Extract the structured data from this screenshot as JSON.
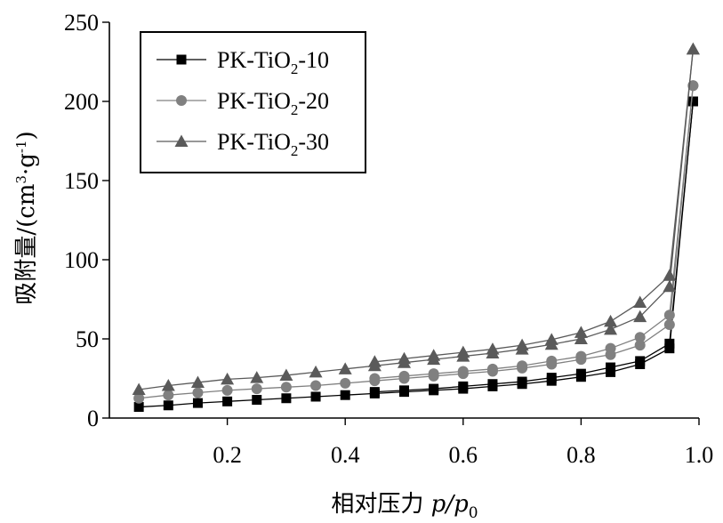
{
  "chart_data": {
    "type": "line",
    "xlabel": "相对压力 p/p0",
    "xlabel_parts": {
      "prefix": "相对压力 ",
      "p": "p",
      "slash": "/",
      "p0": "p",
      "p0_sub": "0"
    },
    "ylabel": "吸附量/(cm3·g-1)",
    "ylabel_parts": {
      "prefix": "吸附量/(cm",
      "sup1": "3",
      "mid": "·g",
      "sup2": "-1",
      "suffix": ")"
    },
    "xlim": [
      0.0,
      1.0
    ],
    "ylim": [
      0,
      250
    ],
    "xticks": [
      0.2,
      0.4,
      0.6,
      0.8,
      1.0
    ],
    "xtick_labels": [
      "0.2",
      "0.4",
      "0.6",
      "0.8",
      "1.0"
    ],
    "yticks": [
      0,
      50,
      100,
      150,
      200,
      250
    ],
    "ytick_labels": [
      "0",
      "50",
      "100",
      "150",
      "200",
      "250"
    ],
    "grid": false,
    "legend_position": "top-left",
    "x": [
      0.05,
      0.1,
      0.15,
      0.2,
      0.25,
      0.3,
      0.35,
      0.4,
      0.45,
      0.5,
      0.55,
      0.6,
      0.65,
      0.7,
      0.75,
      0.8,
      0.85,
      0.9,
      0.95,
      0.99
    ],
    "series": [
      {
        "name": "PK-TiO2-10",
        "name_parts": {
          "prefix": "PK-TiO",
          "sub": "2",
          "suffix": "-10"
        },
        "marker": "square",
        "color": "#000000",
        "adsorption": [
          7,
          8,
          9.5,
          10.5,
          11.5,
          12.5,
          13.5,
          14.5,
          15.5,
          16.5,
          17.5,
          18.5,
          20,
          21.5,
          23.5,
          26,
          29,
          34,
          44,
          200
        ],
        "desorption": [
          null,
          null,
          null,
          null,
          null,
          null,
          null,
          null,
          16.5,
          17.5,
          18.5,
          20,
          21.5,
          23,
          25.5,
          28,
          32,
          36,
          47,
          200
        ]
      },
      {
        "name": "PK-TiO2-20",
        "name_parts": {
          "prefix": "PK-TiO",
          "sub": "2",
          "suffix": "-20"
        },
        "marker": "circle",
        "color": "#808080",
        "adsorption": [
          12.5,
          14.5,
          16,
          17.5,
          18.5,
          19.5,
          20.5,
          22,
          23.5,
          25,
          26.5,
          28,
          29.5,
          31.5,
          34,
          37,
          40,
          46,
          59,
          210
        ],
        "desorption": [
          null,
          null,
          null,
          null,
          null,
          null,
          null,
          null,
          25,
          26.5,
          28,
          29.5,
          31,
          33,
          36,
          39,
          44,
          51,
          65,
          210
        ]
      },
      {
        "name": "PK-TiO2-30",
        "name_parts": {
          "prefix": "PK-TiO",
          "sub": "2",
          "suffix": "-30"
        },
        "marker": "triangle",
        "color": "#5a5a5a",
        "adsorption": [
          18,
          20.5,
          22.5,
          24.5,
          25.5,
          27,
          29,
          31,
          33,
          35,
          37,
          39,
          41,
          43.5,
          46.5,
          50,
          56,
          64,
          83,
          233
        ],
        "desorption": [
          null,
          null,
          null,
          null,
          null,
          null,
          null,
          null,
          35.5,
          37.5,
          39.5,
          41.5,
          43.5,
          46,
          49.5,
          54,
          61,
          73,
          90,
          233
        ]
      }
    ]
  }
}
